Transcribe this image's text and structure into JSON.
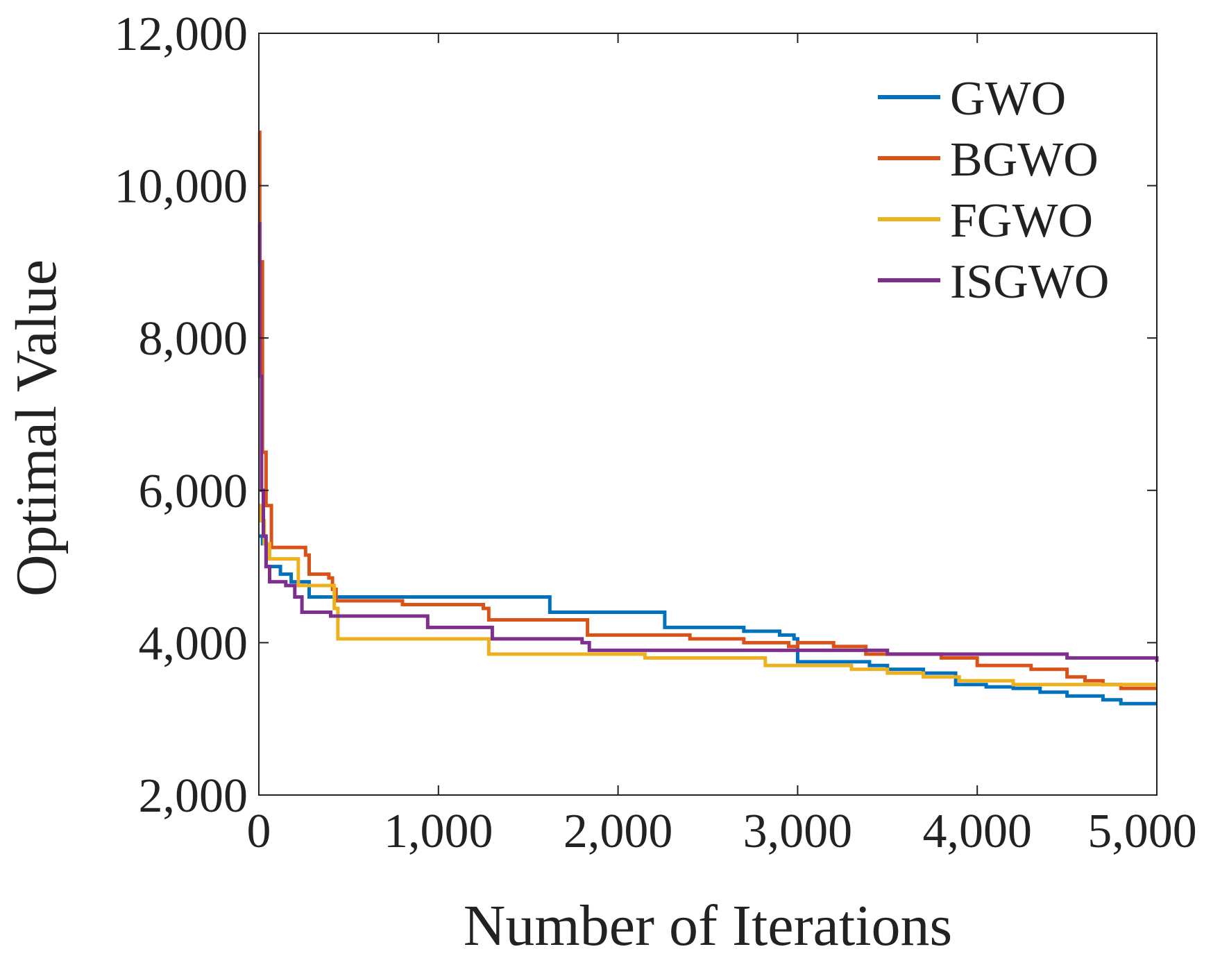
{
  "chart_data": {
    "type": "line",
    "title": "",
    "xlabel": "Number of Iterations",
    "ylabel": "Optimal Value",
    "xlim": [
      0,
      5000
    ],
    "ylim": [
      2000,
      12000
    ],
    "xticks": [
      0,
      1000,
      2000,
      3000,
      4000,
      5000
    ],
    "xtick_labels": [
      "0",
      "1,000",
      "2,000",
      "3,000",
      "4,000",
      "5,000"
    ],
    "yticks": [
      2000,
      4000,
      6000,
      8000,
      10000,
      12000
    ],
    "ytick_labels": [
      "2,000",
      "4,000",
      "6,000",
      "8,000",
      "10,000",
      "12,000"
    ],
    "grid": false,
    "legend_position": "top-right",
    "step": true,
    "series": [
      {
        "name": "GWO",
        "color": "#0072BD",
        "x": [
          0,
          20,
          40,
          120,
          180,
          280,
          1590,
          1620,
          2230,
          2260,
          2700,
          2900,
          2980,
          3000,
          3400,
          3500,
          3700,
          3850,
          3880,
          4050,
          4200,
          4350,
          4500,
          4700,
          4800,
          5000
        ],
        "y": [
          5400,
          5300,
          5000,
          4900,
          4800,
          4600,
          4600,
          4400,
          4400,
          4200,
          4150,
          4100,
          4050,
          3750,
          3700,
          3650,
          3600,
          3600,
          3450,
          3420,
          3400,
          3350,
          3300,
          3250,
          3200,
          3200
        ]
      },
      {
        "name": "BGWO",
        "color": "#D95319",
        "x": [
          0,
          5,
          20,
          40,
          70,
          260,
          280,
          390,
          410,
          430,
          800,
          1250,
          1280,
          1800,
          1830,
          2100,
          2400,
          2700,
          2950,
          3000,
          3200,
          3350,
          3380,
          3600,
          3800,
          4000,
          4300,
          4500,
          4600,
          4700,
          4800,
          5000
        ],
        "y": [
          10700,
          9000,
          6500,
          5800,
          5250,
          5150,
          4900,
          4850,
          4700,
          4550,
          4500,
          4450,
          4300,
          4300,
          4100,
          4100,
          4050,
          4000,
          3950,
          4000,
          3950,
          3950,
          3850,
          3850,
          3800,
          3700,
          3650,
          3550,
          3500,
          3450,
          3400,
          3400
        ]
      },
      {
        "name": "FGWO",
        "color": "#EDB120",
        "x": [
          0,
          10,
          30,
          60,
          200,
          220,
          400,
          420,
          440,
          1250,
          1280,
          2150,
          2800,
          2820,
          3300,
          3500,
          3700,
          3900,
          4200,
          4500,
          5000
        ],
        "y": [
          5800,
          5600,
          5300,
          5100,
          5100,
          4750,
          4750,
          4450,
          4050,
          4050,
          3850,
          3800,
          3800,
          3700,
          3650,
          3600,
          3550,
          3500,
          3450,
          3450,
          3450
        ]
      },
      {
        "name": "ISGWO",
        "color": "#7E2F8E",
        "x": [
          0,
          5,
          15,
          25,
          40,
          60,
          150,
          200,
          240,
          380,
          400,
          860,
          940,
          1300,
          1800,
          1840,
          2200,
          2500,
          2700,
          3000,
          3300,
          3500,
          4000,
          4500,
          5000
        ],
        "y": [
          9500,
          7500,
          6000,
          5400,
          5000,
          4800,
          4750,
          4600,
          4400,
          4400,
          4350,
          4350,
          4200,
          4050,
          4000,
          3900,
          3900,
          3900,
          3900,
          3900,
          3900,
          3850,
          3850,
          3800,
          3750
        ]
      }
    ]
  }
}
